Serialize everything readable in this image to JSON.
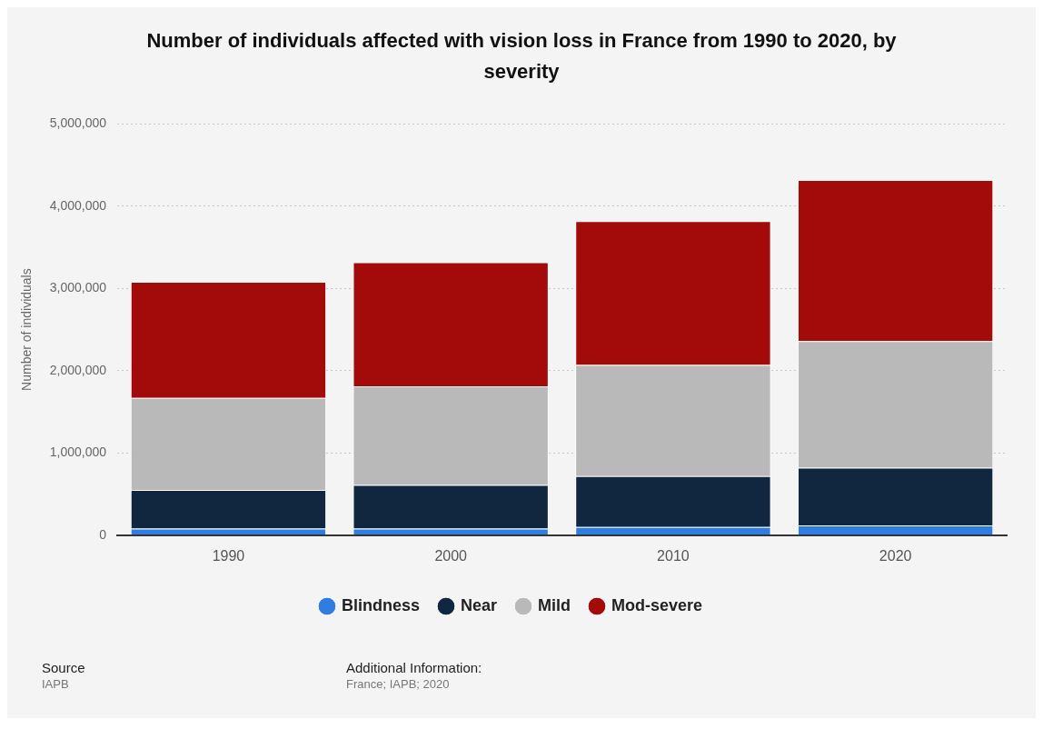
{
  "chart_data": {
    "type": "bar",
    "title": "Number of individuals affected with vision loss in France from 1990 to 2020, by severity",
    "ylabel": "Number of individuals",
    "categories": [
      "1990",
      "2000",
      "2010",
      "2020"
    ],
    "stacked": true,
    "series": [
      {
        "name": "Blindness",
        "color": "#2f7de1",
        "values": [
          80000,
          80000,
          100000,
          120000
        ]
      },
      {
        "name": "Near",
        "color": "#10273f",
        "values": [
          470000,
          530000,
          620000,
          700000
        ]
      },
      {
        "name": "Mild",
        "color": "#b9b9b9",
        "values": [
          1120000,
          1200000,
          1350000,
          1540000
        ]
      },
      {
        "name": "Mod-severe",
        "color": "#a30b0b",
        "values": [
          1410000,
          1510000,
          1750000,
          1960000
        ]
      }
    ],
    "ylim": [
      0,
      5000000
    ],
    "yticks": [
      0,
      {
        "value": 1000000,
        "label": "1,000,000"
      },
      {
        "value": 2000000,
        "label": "2,000,000"
      },
      {
        "value": 3000000,
        "label": "3,000,000"
      },
      {
        "value": 4000000,
        "label": "4,000,000"
      },
      {
        "value": 5000000,
        "label": "5,000,000"
      }
    ],
    "grid": "y",
    "legend": "bottom",
    "annotations": [
      "Source",
      "IAPB",
      "Additional Information:",
      "France; IAPB; 2020"
    ]
  }
}
